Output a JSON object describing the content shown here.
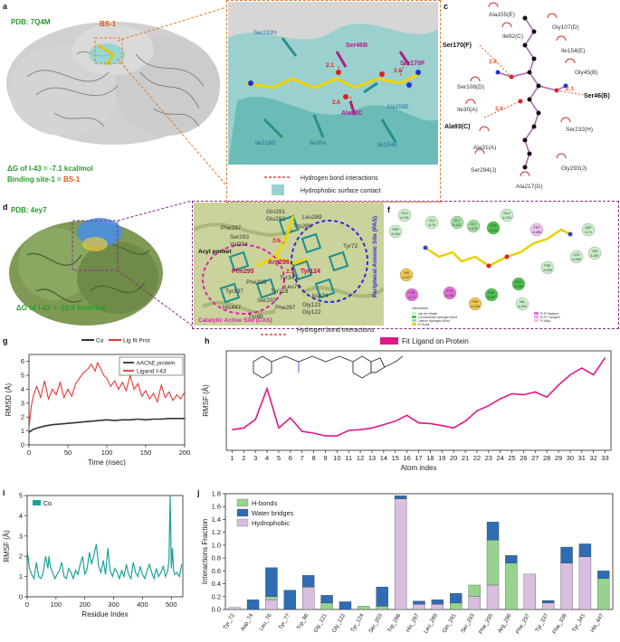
{
  "panel_labels": [
    "a",
    "b",
    "c",
    "d",
    "e",
    "f",
    "g",
    "h",
    "i",
    "j"
  ],
  "panel_a": {
    "pdb": "PDB: 7Q4M",
    "site": "BS-1",
    "dg": "ΔG of I-43 = -7.1 kcal/mol",
    "binding_site_prefix": "Binding site-1 = ",
    "binding_site_value": "BS-1"
  },
  "panel_b": {
    "residues": [
      "Ser46B",
      "Ser232H",
      "Ser170F",
      "Ala93C",
      "Ala155E",
      "Ile218G",
      "Ile30A",
      "Ile154E"
    ],
    "distances": [
      "2.1",
      "2.6",
      "2.6",
      "2.6"
    ],
    "legend": [
      "Hydrogen bond interactions",
      "Hydrophobic surface contact"
    ]
  },
  "panel_c": {
    "residues": [
      "Ala155(E)",
      "Gly107(D)",
      "Ser170(F)",
      "Ile154(E)",
      "Ile92(C)",
      "Gly45(B)",
      "Ser108(D)",
      "Ser46(B)",
      "Ile30(A)",
      "Ala93(C)",
      "Ser232(H)",
      "Ala31(A)",
      "Gly293(J)",
      "Ser294(J)",
      "Ala217(G)"
    ],
    "distances": [
      "2.6",
      "2.6",
      "2.1"
    ]
  },
  "panel_d": {
    "pdb": "PDB: 4ey7",
    "dg": "ΔG of I-43 = -10.9 kcal/mol"
  },
  "panel_e": {
    "labels": [
      "Acyl pocket",
      "Phe295",
      "Arg296",
      "Tyr124",
      "Trp286",
      "Tyr341",
      "Tyr337",
      "His447",
      "Tyr72",
      "Gln291",
      "Glu292",
      "Ser293",
      "Leu289",
      "Asp74",
      "Gly121",
      "Gly122",
      "Ser203",
      "Leu76",
      "Trp86",
      "Phe338",
      "Phe297",
      "Val294",
      "Tyr119",
      "Phe297"
    ],
    "distances": [
      "2.5",
      "2.3"
    ],
    "cas": "Catalytic Active Site (CAS)",
    "pas": "Peripheral Anionic Site (PAS)",
    "legend": "Hydrogen bond interactions"
  },
  "panel_f": {
    "residues": [
      "GLU A:292",
      "GLU A:291",
      "LEU A:76",
      "SER A:293",
      "GLY A:121",
      "GLY A:122",
      "TYR A:124",
      "TRP A:286",
      "LEU A:289",
      "ASP A:74",
      "HIS A:447",
      "TYR A:72",
      "TYR A:341",
      "PHE A:338",
      "PHE A:297",
      "ARG A:296",
      "PHE A:295",
      "VAL A:294",
      "HIS A:287"
    ],
    "legend": [
      "Interactions",
      "van der Waals",
      "Conventional Hydrogen Bond",
      "Carbon Hydrogen Bond",
      "Pi-Sulfur",
      "Pi-Pi Stacked",
      "Pi-Pi T-shaped",
      "Pi-Alkyl"
    ]
  },
  "chart_data": [
    {
      "id": "g",
      "type": "line",
      "title": "",
      "top_legend": [
        "Cα",
        "Lig fit Prot"
      ],
      "xlabel": "Time (nsec)",
      "ylabel": "RMSD (Å)",
      "xlim": [
        0,
        200
      ],
      "ylim": [
        0,
        6.5
      ],
      "xticks": [
        0,
        50,
        100,
        150,
        200
      ],
      "yticks": [
        0,
        1,
        2,
        3,
        4,
        5,
        6
      ],
      "series": [
        {
          "name": "hAChE protein",
          "color": "#333333",
          "x": [
            0,
            5,
            10,
            20,
            30,
            40,
            50,
            60,
            70,
            80,
            90,
            100,
            110,
            120,
            130,
            140,
            150,
            160,
            170,
            180,
            190,
            200
          ],
          "values": [
            0.9,
            1.1,
            1.2,
            1.35,
            1.45,
            1.5,
            1.55,
            1.6,
            1.65,
            1.7,
            1.75,
            1.8,
            1.75,
            1.8,
            1.8,
            1.85,
            1.8,
            1.85,
            1.85,
            1.9,
            1.9,
            1.9
          ]
        },
        {
          "name": "Ligand I-43",
          "color": "#e53935",
          "x": [
            0,
            3,
            6,
            10,
            15,
            20,
            25,
            30,
            35,
            40,
            45,
            50,
            55,
            60,
            65,
            70,
            75,
            80,
            85,
            88,
            92,
            96,
            100,
            105,
            110,
            115,
            120,
            125,
            130,
            135,
            140,
            145,
            150,
            155,
            160,
            165,
            170,
            175,
            180,
            185,
            190,
            195,
            200
          ],
          "values": [
            1.2,
            2.8,
            3.6,
            4.2,
            3.4,
            4.6,
            3.3,
            4.0,
            3.6,
            4.5,
            3.4,
            4.0,
            3.5,
            4.4,
            4.8,
            5.2,
            5.4,
            5.8,
            5.3,
            5.9,
            5.5,
            5.0,
            4.8,
            4.2,
            4.6,
            4.0,
            4.5,
            3.9,
            5.0,
            4.0,
            4.4,
            3.5,
            3.9,
            3.3,
            3.7,
            3.1,
            4.3,
            3.4,
            3.8,
            3.2,
            3.6,
            3.3,
            3.8
          ]
        }
      ]
    },
    {
      "id": "h",
      "type": "line",
      "title": "Fit Ligand on Protein",
      "xlabel": "Atom index",
      "ylabel": "RMSF (Å)",
      "xlim": [
        1,
        33
      ],
      "ylim": [
        0.8,
        3.7
      ],
      "categories": [
        "1",
        "2",
        "3",
        "4",
        "5",
        "6",
        "7",
        "8",
        "9",
        "10",
        "11",
        "12",
        "13",
        "14",
        "15",
        "16",
        "17",
        "18",
        "19",
        "20",
        "21",
        "22",
        "23",
        "24",
        "25",
        "26",
        "27",
        "28",
        "29",
        "30",
        "31",
        "32",
        "33"
      ],
      "series": [
        {
          "name": "Fit Ligand on Protein",
          "color": "#e0168a",
          "values": [
            1.4,
            1.45,
            1.7,
            2.6,
            1.45,
            1.75,
            1.35,
            1.3,
            1.22,
            1.22,
            1.38,
            1.4,
            1.45,
            1.55,
            1.65,
            1.82,
            1.6,
            1.58,
            1.52,
            1.45,
            1.65,
            1.95,
            2.1,
            2.3,
            2.45,
            2.42,
            2.5,
            2.35,
            2.7,
            3.0,
            3.2,
            3.0,
            3.5
          ]
        }
      ]
    },
    {
      "id": "i",
      "type": "line",
      "title": "",
      "xlabel": "Residue Index",
      "ylabel": "RMSF (Å)",
      "xlim": [
        0,
        540
      ],
      "ylim": [
        0,
        5
      ],
      "xticks": [
        0,
        100,
        200,
        300,
        400,
        500
      ],
      "yticks": [
        0,
        1,
        2,
        3,
        4,
        5
      ],
      "series": [
        {
          "name": "Cα",
          "color": "#1aa39a",
          "x": [
            0,
            8,
            16,
            24,
            32,
            40,
            48,
            56,
            64,
            72,
            76,
            80,
            88,
            96,
            104,
            112,
            120,
            128,
            136,
            144,
            152,
            160,
            168,
            176,
            184,
            192,
            200,
            208,
            216,
            224,
            232,
            240,
            248,
            256,
            264,
            272,
            280,
            288,
            296,
            304,
            312,
            320,
            328,
            336,
            344,
            352,
            360,
            368,
            376,
            384,
            392,
            400,
            408,
            416,
            424,
            432,
            440,
            448,
            456,
            464,
            472,
            480,
            488,
            492,
            496,
            500,
            504,
            508,
            512,
            520,
            528,
            536
          ],
          "values": [
            2.3,
            1.4,
            1.1,
            0.9,
            1.7,
            1.0,
            0.9,
            1.2,
            2.0,
            1.4,
            2.0,
            1.5,
            1.2,
            0.9,
            1.1,
            1.3,
            1.7,
            1.0,
            0.9,
            1.4,
            1.2,
            0.9,
            1.3,
            1.1,
            1.6,
            2.0,
            1.1,
            1.4,
            2.2,
            1.6,
            2.1,
            2.6,
            1.5,
            1.2,
            1.8,
            1.1,
            2.4,
            1.3,
            1.0,
            1.4,
            1.2,
            0.9,
            1.3,
            1.0,
            1.6,
            1.1,
            0.9,
            1.7,
            1.2,
            1.0,
            1.5,
            1.1,
            0.9,
            1.3,
            1.6,
            1.2,
            0.9,
            1.4,
            1.0,
            1.2,
            1.5,
            1.0,
            1.3,
            1.8,
            5.0,
            1.4,
            2.4,
            1.3,
            1.1,
            1.2,
            1.0,
            1.6
          ]
        }
      ]
    },
    {
      "id": "j",
      "type": "bar",
      "stacked": true,
      "title": "",
      "xlabel": "",
      "ylabel": "Interactions Fraction",
      "ylim": [
        0,
        1.8
      ],
      "yticks": [
        0.0,
        0.2,
        0.4,
        0.6,
        0.8,
        1.0,
        1.2,
        1.4,
        1.6,
        1.8
      ],
      "categories": [
        "Tyr_72",
        "Asp_74",
        "Leu_76",
        "Tyr_77",
        "Trp_86",
        "Gly_121",
        "Gly_122",
        "Tyr_124",
        "Ser_203",
        "Trp_286",
        "His_287",
        "Leu_289",
        "Gln_291",
        "Ser_293",
        "Phe_295",
        "Arg_296",
        "Phe_297",
        "Tyr_337",
        "Phe_338",
        "Tyr_341",
        "His_447"
      ],
      "series": [
        {
          "name": "Hydrophobic",
          "color": "#d9bedf",
          "values": [
            0.03,
            0.0,
            0.15,
            0.0,
            0.35,
            0.0,
            0.0,
            0.0,
            0.0,
            1.72,
            0.08,
            0.08,
            0.0,
            0.2,
            0.38,
            0.0,
            0.55,
            0.1,
            0.72,
            0.82,
            0.0
          ]
        },
        {
          "name": "H-bonds",
          "color": "#96d48d",
          "values": [
            0.0,
            0.0,
            0.05,
            0.0,
            0.0,
            0.1,
            0.0,
            0.05,
            0.05,
            0.0,
            0.0,
            0.0,
            0.1,
            0.18,
            0.7,
            0.72,
            0.0,
            0.0,
            0.0,
            0.0,
            0.48
          ]
        },
        {
          "name": "Water bridges",
          "color": "#2e6db3",
          "values": [
            0.0,
            0.15,
            0.45,
            0.3,
            0.18,
            0.12,
            0.12,
            0.0,
            0.3,
            0.05,
            0.05,
            0.07,
            0.15,
            0.0,
            0.28,
            0.12,
            0.0,
            0.04,
            0.25,
            0.2,
            0.12
          ]
        }
      ]
    }
  ]
}
